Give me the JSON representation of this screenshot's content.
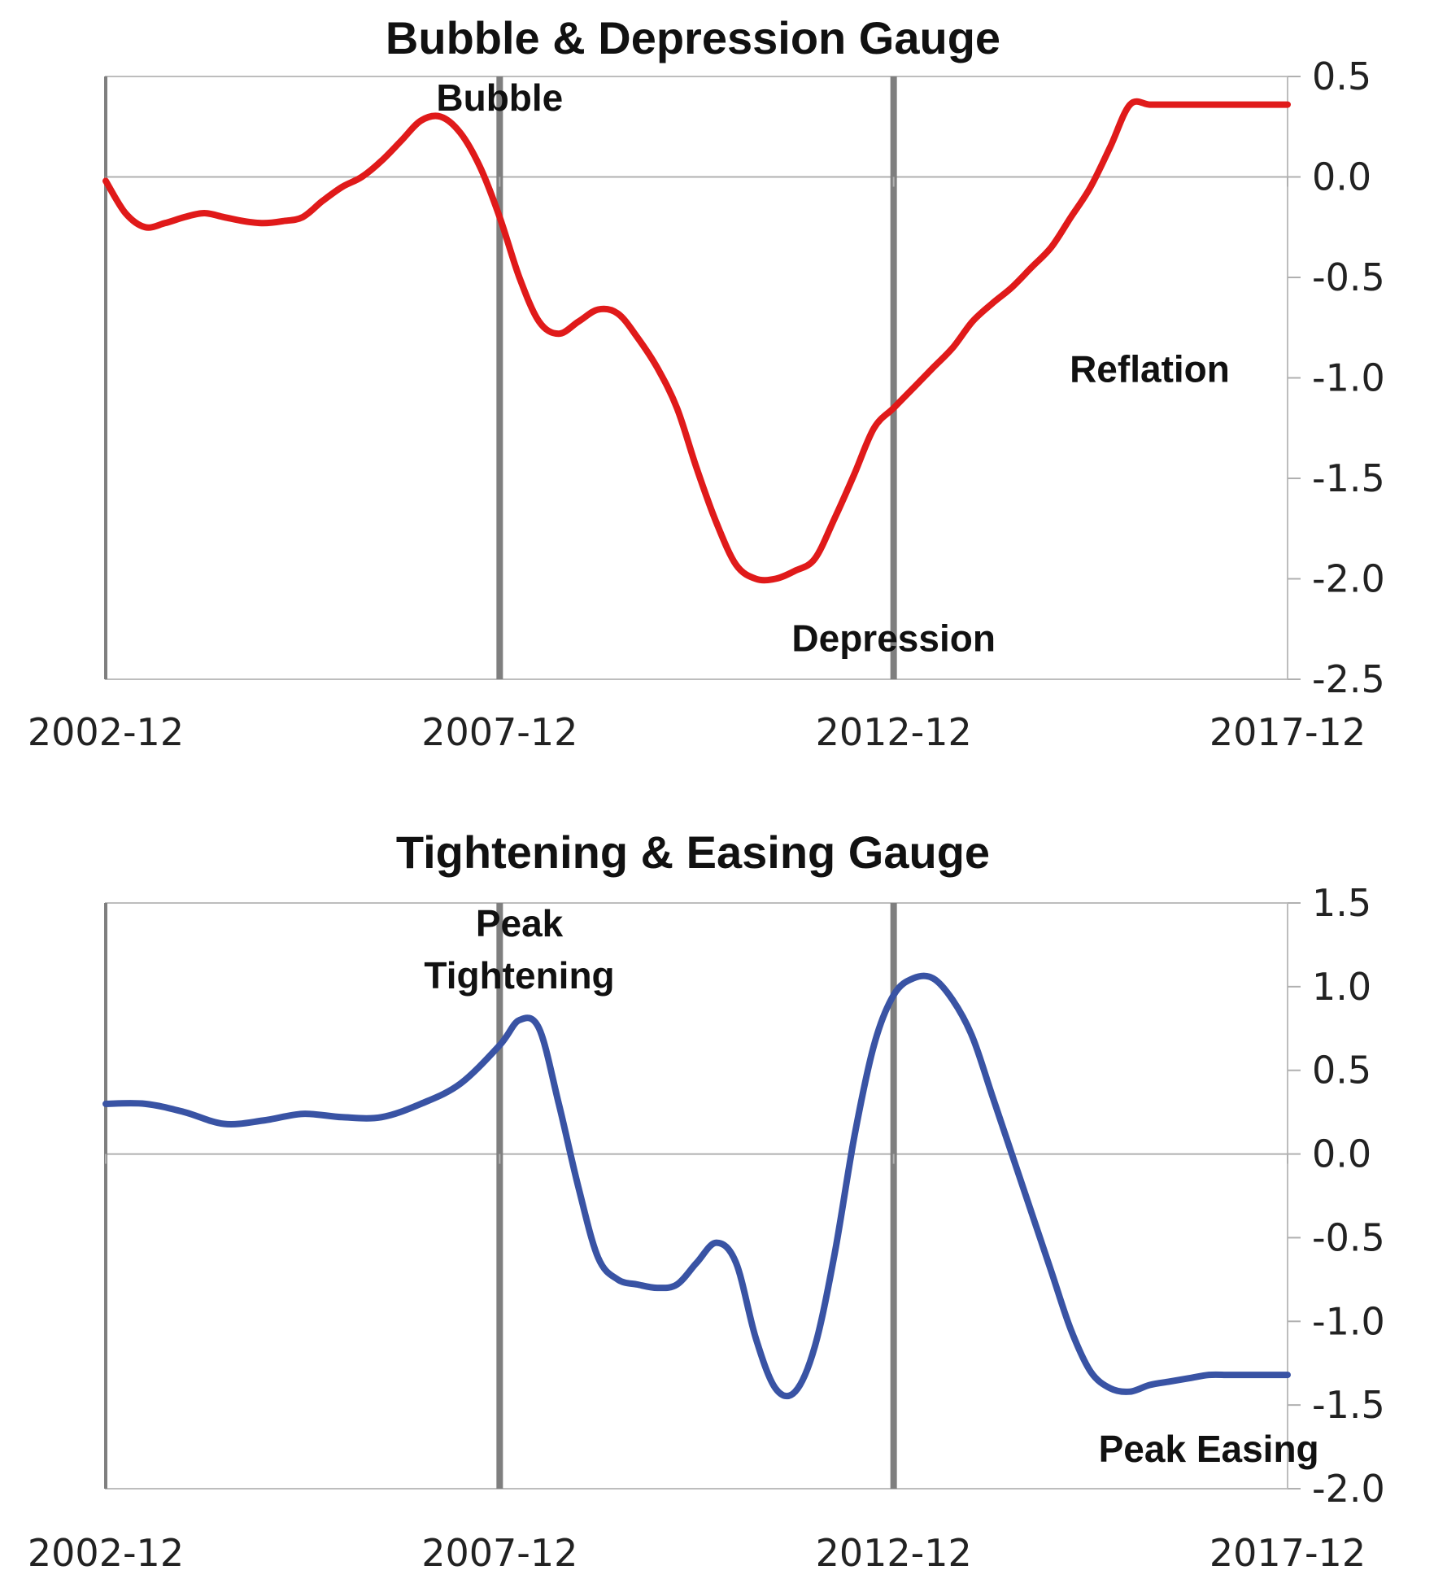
{
  "chart_data": [
    {
      "type": "line",
      "title": "Bubble & Depression Gauge",
      "xlabel": "",
      "ylabel": "",
      "x_tick_labels": [
        "2002-12",
        "2007-12",
        "2012-12",
        "2017-12"
      ],
      "xlim": [
        "2002-12",
        "2017-12"
      ],
      "ylim": [
        -2.5,
        0.5
      ],
      "y_ticks": [
        "0.5",
        "0.0",
        "-0.5",
        "-1.0",
        "-1.5",
        "-2.0",
        "-2.5"
      ],
      "y_tick_values": [
        0.5,
        0.0,
        -0.5,
        -1.0,
        -1.5,
        -2.0,
        -2.5
      ],
      "y_axis_side": "right",
      "grid": false,
      "vertical_markers": [
        "2002-12",
        "2007-12",
        "2012-12"
      ],
      "line_color": "#e01a1a",
      "series": [
        {
          "x": [
            "2002-12",
            "2003-03",
            "2003-06",
            "2003-09",
            "2003-12",
            "2004-03",
            "2004-06",
            "2004-09",
            "2004-12",
            "2005-03",
            "2005-06",
            "2005-09",
            "2005-12",
            "2006-03",
            "2006-06",
            "2006-09",
            "2006-12",
            "2007-03",
            "2007-06",
            "2007-09",
            "2007-12",
            "2008-03",
            "2008-06",
            "2008-09",
            "2008-12",
            "2009-03",
            "2009-06",
            "2009-09",
            "2009-12",
            "2010-03",
            "2010-06",
            "2010-09",
            "2010-12",
            "2011-03",
            "2011-06",
            "2011-09",
            "2011-12",
            "2012-03",
            "2012-06",
            "2012-09",
            "2012-12",
            "2013-03",
            "2013-06",
            "2013-09",
            "2013-12",
            "2014-03",
            "2014-06",
            "2014-09",
            "2014-12",
            "2015-03",
            "2015-06",
            "2015-09",
            "2015-12",
            "2016-03",
            "2016-06",
            "2016-09",
            "2016-12",
            "2017-03",
            "2017-06",
            "2017-09",
            "2017-12"
          ],
          "values": [
            -0.02,
            -0.18,
            -0.25,
            -0.23,
            -0.2,
            -0.18,
            -0.2,
            -0.22,
            -0.23,
            -0.22,
            -0.2,
            -0.12,
            -0.05,
            0.0,
            0.08,
            0.18,
            0.28,
            0.3,
            0.22,
            0.05,
            -0.2,
            -0.5,
            -0.72,
            -0.78,
            -0.72,
            -0.66,
            -0.68,
            -0.8,
            -0.95,
            -1.15,
            -1.45,
            -1.72,
            -1.93,
            -2.0,
            -2.0,
            -1.96,
            -1.9,
            -1.7,
            -1.48,
            -1.25,
            -1.15,
            -1.05,
            -0.95,
            -0.85,
            -0.72,
            -0.63,
            -0.55,
            -0.45,
            -0.35,
            -0.2,
            -0.05,
            0.15,
            0.36,
            0.36,
            0.36,
            0.36,
            0.36,
            0.36,
            0.36,
            0.36,
            0.36
          ]
        }
      ],
      "annotations": [
        {
          "text": "Bubble",
          "x": "2007-12",
          "y": 0.33
        },
        {
          "text": "Depression",
          "x": "2012-12",
          "y": -2.36
        },
        {
          "text": "Reflation",
          "x": "2016-03",
          "y": -1.02
        }
      ]
    },
    {
      "type": "line",
      "title": "Tightening & Easing Gauge",
      "xlabel": "",
      "ylabel": "",
      "x_tick_labels": [
        "2002-12",
        "2007-12",
        "2012-12",
        "2017-12"
      ],
      "xlim": [
        "2002-12",
        "2017-12"
      ],
      "ylim": [
        -2.0,
        1.5
      ],
      "y_ticks": [
        "1.5",
        "1.0",
        "0.5",
        "0.0",
        "-0.5",
        "-1.0",
        "-1.5",
        "-2.0"
      ],
      "y_tick_values": [
        1.5,
        1.0,
        0.5,
        0.0,
        -0.5,
        -1.0,
        -1.5,
        -2.0
      ],
      "y_axis_side": "right",
      "grid": false,
      "vertical_markers": [
        "2002-12",
        "2007-12",
        "2012-12"
      ],
      "line_color": "#3953a4",
      "series": [
        {
          "x": [
            "2002-12",
            "2003-06",
            "2003-12",
            "2004-06",
            "2004-12",
            "2005-06",
            "2005-12",
            "2006-06",
            "2006-12",
            "2007-06",
            "2007-12",
            "2008-03",
            "2008-06",
            "2008-09",
            "2008-12",
            "2009-03",
            "2009-06",
            "2009-09",
            "2009-12",
            "2010-03",
            "2010-06",
            "2010-09",
            "2010-12",
            "2011-03",
            "2011-06",
            "2011-09",
            "2011-12",
            "2012-03",
            "2012-06",
            "2012-09",
            "2012-12",
            "2013-03",
            "2013-06",
            "2013-09",
            "2013-12",
            "2014-03",
            "2014-06",
            "2014-09",
            "2014-12",
            "2015-03",
            "2015-06",
            "2015-09",
            "2015-12",
            "2016-03",
            "2016-06",
            "2016-09",
            "2016-12",
            "2017-03",
            "2017-06",
            "2017-09",
            "2017-12"
          ],
          "values": [
            0.3,
            0.3,
            0.25,
            0.18,
            0.2,
            0.24,
            0.22,
            0.22,
            0.3,
            0.42,
            0.65,
            0.8,
            0.75,
            0.3,
            -0.2,
            -0.62,
            -0.75,
            -0.78,
            -0.8,
            -0.78,
            -0.65,
            -0.53,
            -0.65,
            -1.1,
            -1.4,
            -1.42,
            -1.15,
            -0.6,
            0.1,
            0.65,
            0.95,
            1.05,
            1.05,
            0.92,
            0.7,
            0.35,
            0.0,
            -0.35,
            -0.7,
            -1.05,
            -1.3,
            -1.4,
            -1.42,
            -1.38,
            -1.36,
            -1.34,
            -1.32,
            -1.32,
            -1.32,
            -1.32,
            -1.32
          ]
        }
      ],
      "annotations": [
        {
          "text": "Peak",
          "x": "2008-03",
          "y": 1.3
        },
        {
          "text": "Tightening",
          "x": "2008-03",
          "y": 0.99
        },
        {
          "text": "Peak Easing",
          "x": "2016-12",
          "y": -1.84
        }
      ]
    }
  ]
}
